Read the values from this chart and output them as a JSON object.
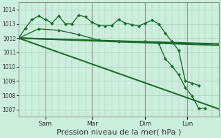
{
  "bg_color": "#cceedd",
  "grid_color": "#aaccbb",
  "line_color": "#1a6b2a",
  "marker_color": "#1a6b2a",
  "xlabel": "Pression niveau de la mer( hPa )",
  "xlabel_fontsize": 8,
  "yticks": [
    1007,
    1008,
    1009,
    1010,
    1011,
    1012,
    1013,
    1014
  ],
  "ylim": [
    1006.5,
    1014.5
  ],
  "xtick_labels": [
    "Sam",
    "Mar",
    "Dim",
    "Lun"
  ],
  "xtick_positions": [
    12,
    33,
    57,
    76
  ],
  "xlim": [
    0,
    90
  ],
  "series": [
    {
      "x": [
        0,
        3,
        6,
        9,
        12,
        15,
        18,
        21,
        24,
        27,
        30,
        33,
        36,
        39,
        42,
        45,
        48,
        51,
        54,
        57,
        60,
        63,
        66,
        69,
        72,
        75,
        78,
        81
      ],
      "y": [
        1012.0,
        1012.7,
        1013.3,
        1013.55,
        1013.3,
        1013.05,
        1013.55,
        1013.0,
        1013.0,
        1013.6,
        1013.5,
        1013.1,
        1012.9,
        1012.85,
        1012.9,
        1013.3,
        1013.05,
        1012.95,
        1012.85,
        1013.05,
        1013.25,
        1013.0,
        1012.35,
        1011.75,
        1011.15,
        1009.0,
        1008.85,
        1008.7
      ],
      "marker": "D",
      "linewidth": 1.0,
      "markersize": 2.2
    },
    {
      "x": [
        0,
        90
      ],
      "y": [
        1012.0,
        1011.6
      ],
      "marker": null,
      "linewidth": 1.5,
      "markersize": 0
    },
    {
      "x": [
        0,
        90
      ],
      "y": [
        1012.0,
        1011.5
      ],
      "marker": null,
      "linewidth": 1.5,
      "markersize": 0
    },
    {
      "x": [
        0,
        90
      ],
      "y": [
        1012.0,
        1007.05
      ],
      "marker": null,
      "linewidth": 1.5,
      "markersize": 0
    },
    {
      "x": [
        0,
        9,
        18,
        27,
        36,
        45,
        57,
        63,
        66,
        69,
        72,
        75,
        78,
        81,
        84,
        87,
        90
      ],
      "y": [
        1012.0,
        1012.65,
        1012.55,
        1012.25,
        1011.85,
        1011.75,
        1011.75,
        1011.65,
        1010.55,
        1010.05,
        1009.45,
        1008.55,
        1007.95,
        1007.1,
        1007.1,
        null,
        null
      ],
      "marker": "D",
      "linewidth": 1.0,
      "markersize": 2.2
    }
  ],
  "vline_positions": [
    0,
    12,
    33,
    57,
    76
  ],
  "vline_color": "#888888",
  "vline_lw": 0.6
}
